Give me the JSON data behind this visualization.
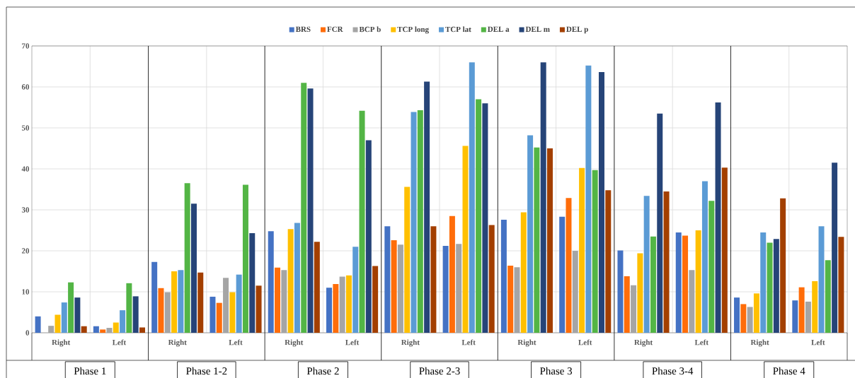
{
  "chart_data": {
    "type": "bar",
    "categories": [
      "Right",
      "Left",
      "Right",
      "Left",
      "Right",
      "Left",
      "Right",
      "Left",
      "Right",
      "Left",
      "Right",
      "Left",
      "Right",
      "Left"
    ],
    "series": [
      {
        "name": "BRS",
        "color": "#4472c4",
        "values": [
          4.0,
          1.6,
          17.3,
          8.8,
          24.8,
          11.0,
          26.0,
          21.2,
          27.6,
          28.3,
          20.1,
          24.5,
          8.6,
          7.9
        ]
      },
      {
        "name": "FCR",
        "color": "#ff6d0a",
        "values": [
          null,
          0.8,
          10.9,
          7.3,
          15.9,
          11.9,
          22.6,
          28.5,
          16.4,
          32.9,
          13.8,
          23.7,
          7.0,
          11.1
        ]
      },
      {
        "name": "BCP b",
        "color": "#a5a5a5",
        "values": [
          1.7,
          1.2,
          9.9,
          13.4,
          15.3,
          13.7,
          21.5,
          21.7,
          16.0,
          20.0,
          11.6,
          15.3,
          6.3,
          7.6
        ]
      },
      {
        "name": "TCP long",
        "color": "#ffc000",
        "values": [
          4.4,
          2.5,
          15.0,
          9.9,
          25.3,
          14.0,
          35.6,
          45.6,
          29.4,
          40.2,
          19.4,
          25.0,
          9.6,
          12.6
        ]
      },
      {
        "name": "TCP lat",
        "color": "#5b9bd5",
        "values": [
          7.4,
          5.5,
          15.3,
          14.2,
          26.8,
          21.0,
          53.9,
          66.0,
          48.2,
          65.2,
          33.4,
          37.0,
          24.5,
          26.0
        ]
      },
      {
        "name": "DEL a",
        "color": "#53b545",
        "values": [
          12.3,
          12.1,
          36.5,
          36.1,
          61.0,
          54.2,
          54.3,
          57.0,
          45.2,
          39.7,
          23.5,
          32.2,
          22.0,
          17.7
        ]
      },
      {
        "name": "DEL m",
        "color": "#264478",
        "values": [
          8.6,
          8.9,
          31.5,
          24.3,
          59.6,
          47.0,
          61.3,
          56.0,
          66.0,
          63.6,
          53.5,
          56.2,
          22.9,
          41.5
        ]
      },
      {
        "name": "DEL p",
        "color": "#a33f00",
        "values": [
          1.6,
          1.3,
          14.7,
          11.5,
          22.2,
          16.3,
          26.0,
          26.3,
          45.0,
          34.8,
          34.5,
          40.3,
          32.8,
          23.4
        ]
      }
    ],
    "ylim": [
      0,
      70
    ],
    "yticks": [
      0,
      10,
      20,
      30,
      40,
      50,
      60,
      70
    ],
    "grid": true,
    "legend": "top",
    "annotations": [
      "Phase 1",
      "Phase 1-2",
      "Phase 2",
      "Phase 2-3",
      "Phase 3",
      "Phase 3-4",
      "Phase 4"
    ]
  }
}
